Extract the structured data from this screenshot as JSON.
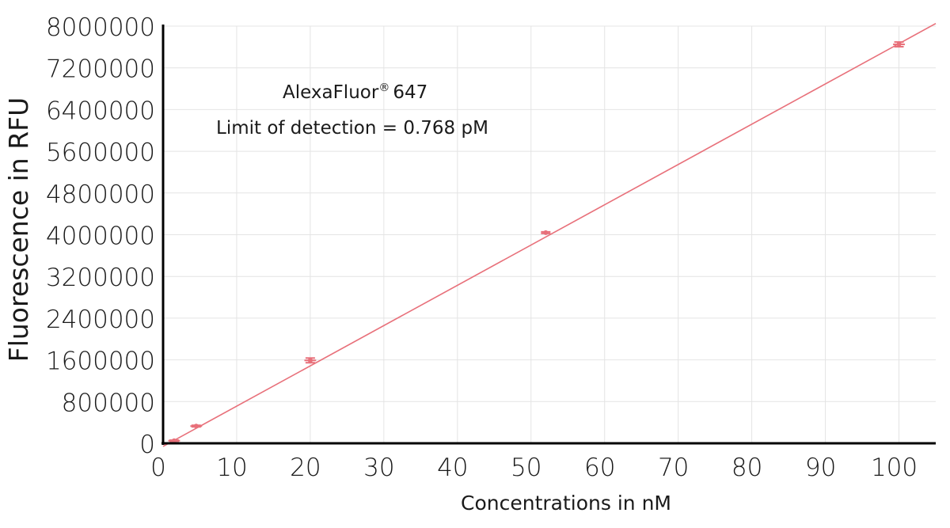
{
  "chart_data": {
    "type": "scatter",
    "title": "",
    "xlabel": "Concentrations in nM",
    "ylabel": "Fluorescence in RFU",
    "xlim": [
      0,
      105
    ],
    "ylim": [
      0,
      8000000
    ],
    "x_ticks": [
      0,
      10,
      20,
      30,
      40,
      50,
      60,
      70,
      80,
      90,
      100
    ],
    "y_ticks": [
      0,
      800000,
      1600000,
      2400000,
      3200000,
      4000000,
      4800000,
      5600000,
      6400000,
      7200000,
      8000000
    ],
    "grid": true,
    "series": [
      {
        "points": [
          {
            "x": 1.5,
            "y": 50000,
            "x_err": 0.8,
            "y_err": 10000
          },
          {
            "x": 4.5,
            "y": 330000,
            "x_err": 0.8,
            "y_err": 15000
          },
          {
            "x": 20,
            "y": 1590000,
            "x_err": 0.8,
            "y_err": 45000
          },
          {
            "x": 52,
            "y": 4040000,
            "x_err": 0.2,
            "y_err": 15000
          },
          {
            "x": 100,
            "y": 7650000,
            "x_err": 0.8,
            "y_err": 45000
          }
        ],
        "fit_line": {
          "x": [
            0,
            105
          ],
          "y": [
            -60000,
            8050000
          ]
        },
        "color": "#e8707a"
      }
    ],
    "annotations": {
      "dye_name": "AlexaFluor",
      "dye_mark": "®",
      "dye_number": "647",
      "lod_text": "Limit of detection = 0.768 pM"
    }
  }
}
